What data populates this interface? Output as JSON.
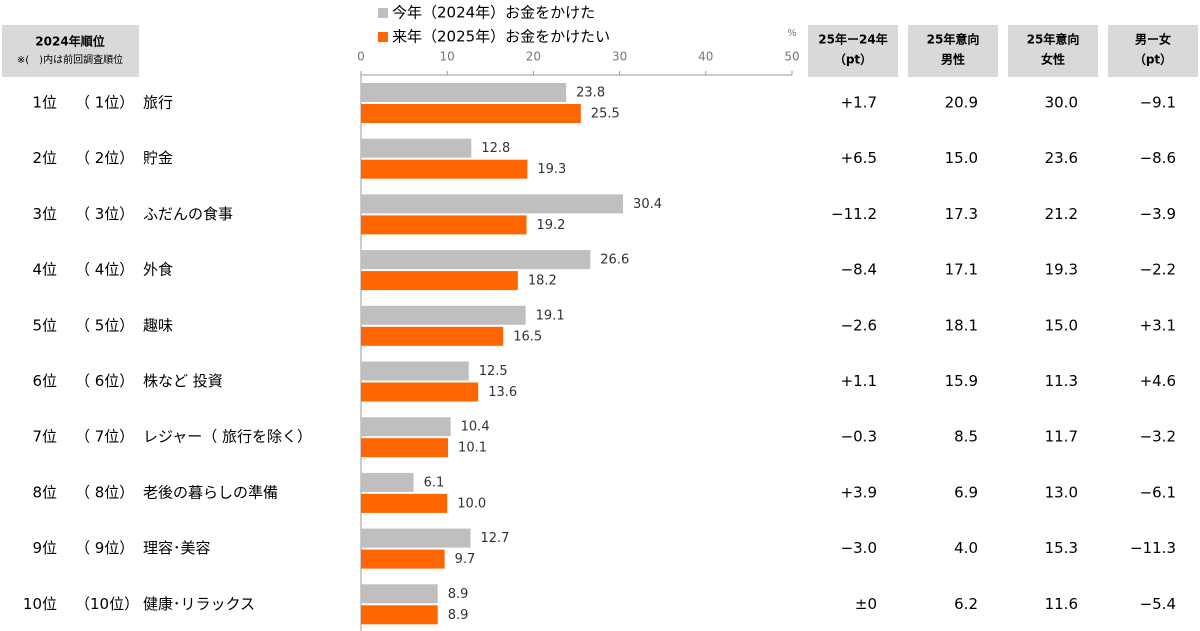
{
  "header": {
    "rank_title": "2024年順位",
    "rank_note": "※(　)内は前回調査順位"
  },
  "chart_data": {
    "type": "bar",
    "orientation": "horizontal",
    "categories": [
      "旅行",
      "貯金",
      "ふだんの食事",
      "外食",
      "趣味",
      "株など 投資",
      "レジャー（ 旅行を除く）",
      "老後の暮らしの準備",
      "理容･美容",
      "健康･リラックス"
    ],
    "series": [
      {
        "name": "今年（2024年）お金をかけた",
        "color": "#bfbfbf",
        "values": [
          23.8,
          12.8,
          30.4,
          26.6,
          19.1,
          12.5,
          10.4,
          6.1,
          12.7,
          8.9
        ],
        "value_labels": [
          "23.8",
          "12.8",
          "30.4",
          "26.6",
          "19.1",
          "12.5",
          "10.4",
          "6.1",
          "12.7",
          "8.9"
        ]
      },
      {
        "name": "来年（2025年）お金をかけたい",
        "color": "#ff6600",
        "values": [
          25.5,
          19.3,
          19.2,
          18.2,
          16.5,
          13.6,
          10.1,
          10.0,
          9.7,
          8.9
        ],
        "value_labels": [
          "25.5",
          "19.3",
          "19.2",
          "18.2",
          "16.5",
          "13.6",
          "10.1",
          "10.0",
          "9.7",
          "8.9"
        ]
      }
    ],
    "xlim": [
      0,
      50
    ],
    "xticks": [
      0,
      10,
      20,
      30,
      40,
      50
    ],
    "x_unit": "%",
    "grid": false
  },
  "table": {
    "columns": [
      [
        "25年ー24年",
        "（pt）"
      ],
      [
        "25年意向",
        "男性"
      ],
      [
        "25年意向",
        "女性"
      ],
      [
        "男ー女",
        "（pt）"
      ]
    ],
    "ranks": [
      "1位",
      "2位",
      "3位",
      "4位",
      "5位",
      "6位",
      "7位",
      "8位",
      "9位",
      "10位"
    ],
    "previous_ranks": [
      "（ 1位）",
      "（ 2位）",
      "（ 3位）",
      "（ 4位）",
      "（ 5位）",
      "（ 6位）",
      "（ 7位）",
      "（ 8位）",
      "（ 9位）",
      "（10位）"
    ],
    "rows": [
      [
        "+1.7",
        "20.9",
        "30.0",
        "−9.1"
      ],
      [
        "+6.5",
        "15.0",
        "23.6",
        "−8.6"
      ],
      [
        "−11.2",
        "17.3",
        "21.2",
        "−3.9"
      ],
      [
        "−8.4",
        "17.1",
        "19.3",
        "−2.2"
      ],
      [
        "−2.6",
        "18.1",
        "15.0",
        "+3.1"
      ],
      [
        "+1.1",
        "15.9",
        "11.3",
        "+4.6"
      ],
      [
        "−0.3",
        "8.5",
        "11.7",
        "−3.2"
      ],
      [
        "+3.9",
        "6.9",
        "13.0",
        "−6.1"
      ],
      [
        "−3.0",
        "4.0",
        "15.3",
        "−11.3"
      ],
      [
        "±0",
        "6.2",
        "11.6",
        "−5.4"
      ]
    ]
  }
}
